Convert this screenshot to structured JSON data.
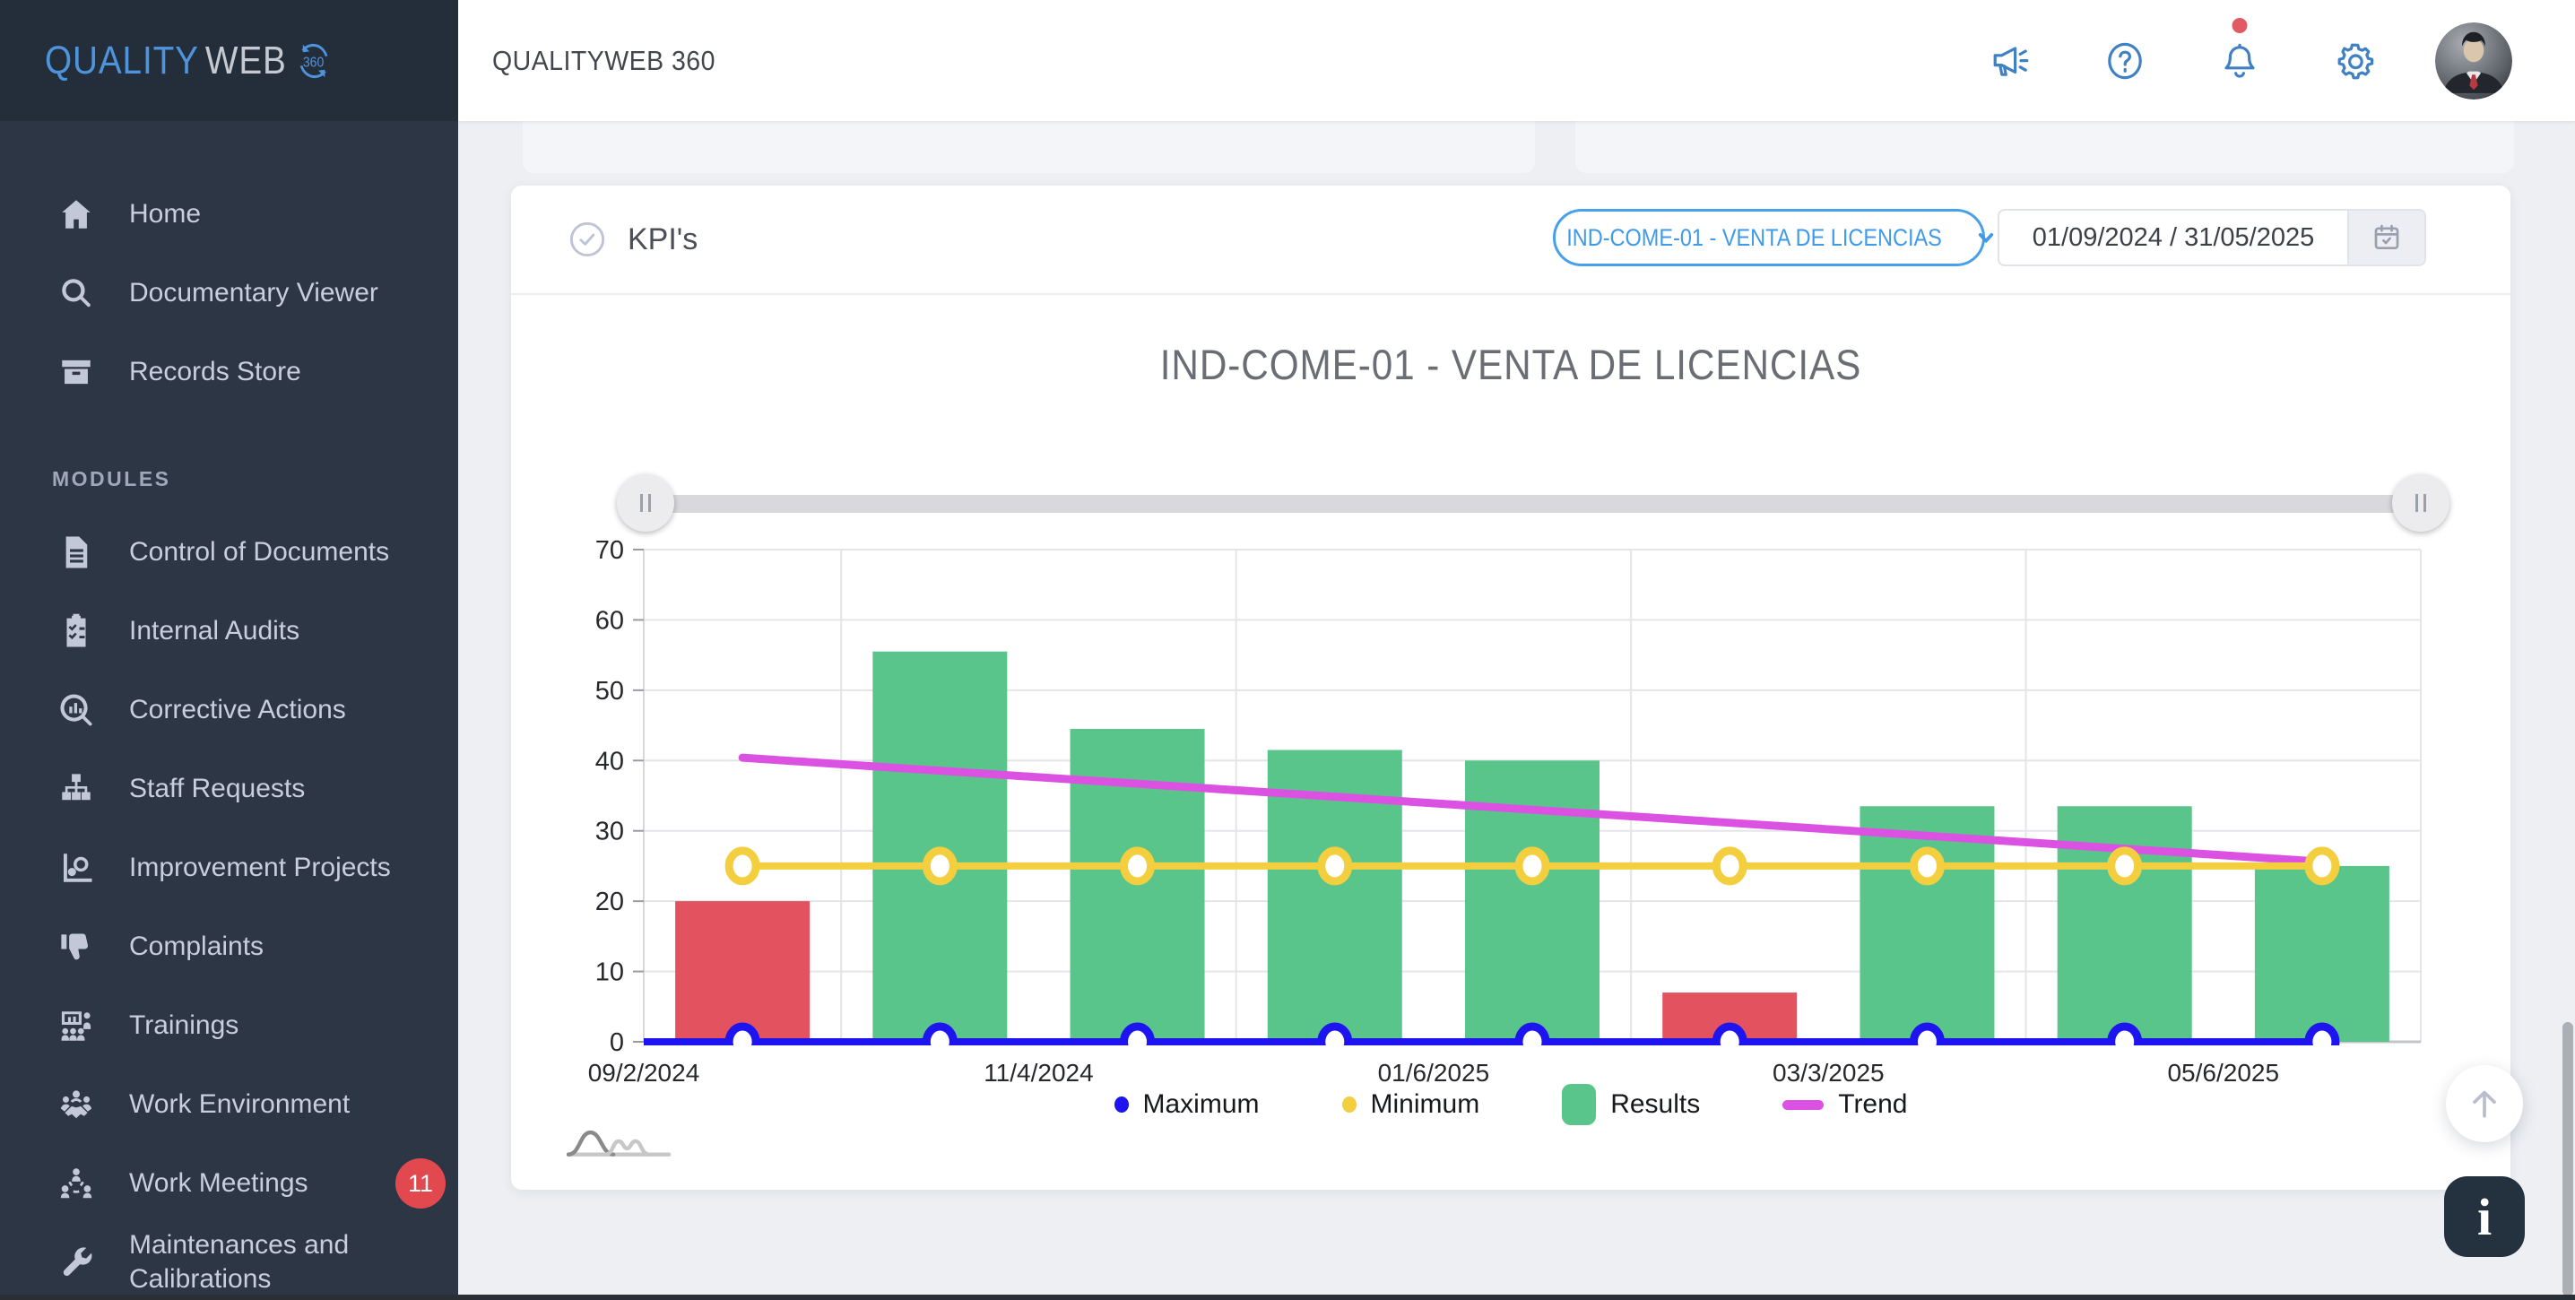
{
  "brand": {
    "part1": "QUALITY",
    "part2": "WEB",
    "part3": "360"
  },
  "header": {
    "title": "QUALITYWEB 360",
    "icons": [
      {
        "name": "megaphone-icon"
      },
      {
        "name": "help-icon"
      },
      {
        "name": "bell-icon",
        "dot": true
      },
      {
        "name": "settings-icon"
      }
    ]
  },
  "sidebar": {
    "items": [
      {
        "label": "Home",
        "icon": "home-icon"
      },
      {
        "label": "Documentary Viewer",
        "icon": "search-icon"
      },
      {
        "label": "Records Store",
        "icon": "archive-icon"
      }
    ],
    "section_label": "MODULES",
    "module_items": [
      {
        "label": "Control of Documents",
        "icon": "document-icon"
      },
      {
        "label": "Internal Audits",
        "icon": "clipboard-check-icon"
      },
      {
        "label": "Corrective Actions",
        "icon": "search-chart-icon"
      },
      {
        "label": "Staff Requests",
        "icon": "org-chart-icon"
      },
      {
        "label": "Improvement Projects",
        "icon": "improvement-chart-icon"
      },
      {
        "label": "Complaints",
        "icon": "thumbs-down-icon"
      },
      {
        "label": "Trainings",
        "icon": "training-icon"
      },
      {
        "label": "Work Environment",
        "icon": "work-environment-icon"
      },
      {
        "label": "Work Meetings",
        "icon": "meeting-icon",
        "badge": "11"
      },
      {
        "label": "Maintenances and Calibrations",
        "icon": "wrench-icon"
      }
    ]
  },
  "kpi_card": {
    "title": "KPI's",
    "kpi_selector": "IND-COME-01 - VENTA DE LICENCIAS",
    "date_range": "01/09/2024 / 31/05/2025"
  },
  "chart_data": {
    "type": "bar",
    "title": "IND-COME-01 - VENTA DE LICENCIAS",
    "ylim": [
      0,
      70
    ],
    "ytick_step": 10,
    "grid": true,
    "num_points": 9,
    "x_tick_labels": [
      "09/2/2024",
      "11/4/2024",
      "01/6/2025",
      "03/3/2025",
      "05/6/2025"
    ],
    "series": [
      {
        "name": "Results",
        "type": "bar",
        "values": [
          20,
          55.5,
          44.5,
          41.5,
          40,
          7,
          33.5,
          33.5,
          25
        ],
        "color": "#5AC58A",
        "below_min_color": "#E2525F"
      },
      {
        "name": "Maximum",
        "type": "line",
        "values": [
          0,
          0,
          0,
          0,
          0,
          0,
          0,
          0,
          0
        ],
        "color": "#1D14F0"
      },
      {
        "name": "Minimum",
        "type": "line",
        "values": [
          25,
          25,
          25,
          25,
          25,
          25,
          25,
          25,
          25
        ],
        "color": "#F3CE3E"
      },
      {
        "name": "Trend",
        "type": "line",
        "values": [
          40.4,
          38.55,
          36.7,
          34.85,
          33,
          31.15,
          29.3,
          27.45,
          25.6
        ],
        "color": "#DB52E3"
      }
    ],
    "legend": [
      {
        "label": "Maximum",
        "marker": "ring",
        "color": "#1D14F0"
      },
      {
        "label": "Minimum",
        "marker": "ring",
        "color": "#F3CE3E"
      },
      {
        "label": "Results",
        "marker": "square",
        "color": "#5AC58A"
      },
      {
        "label": "Trend",
        "marker": "dash",
        "color": "#DB52E3"
      }
    ],
    "legend_position": "bottom"
  },
  "floating": {
    "info_label": "i"
  }
}
